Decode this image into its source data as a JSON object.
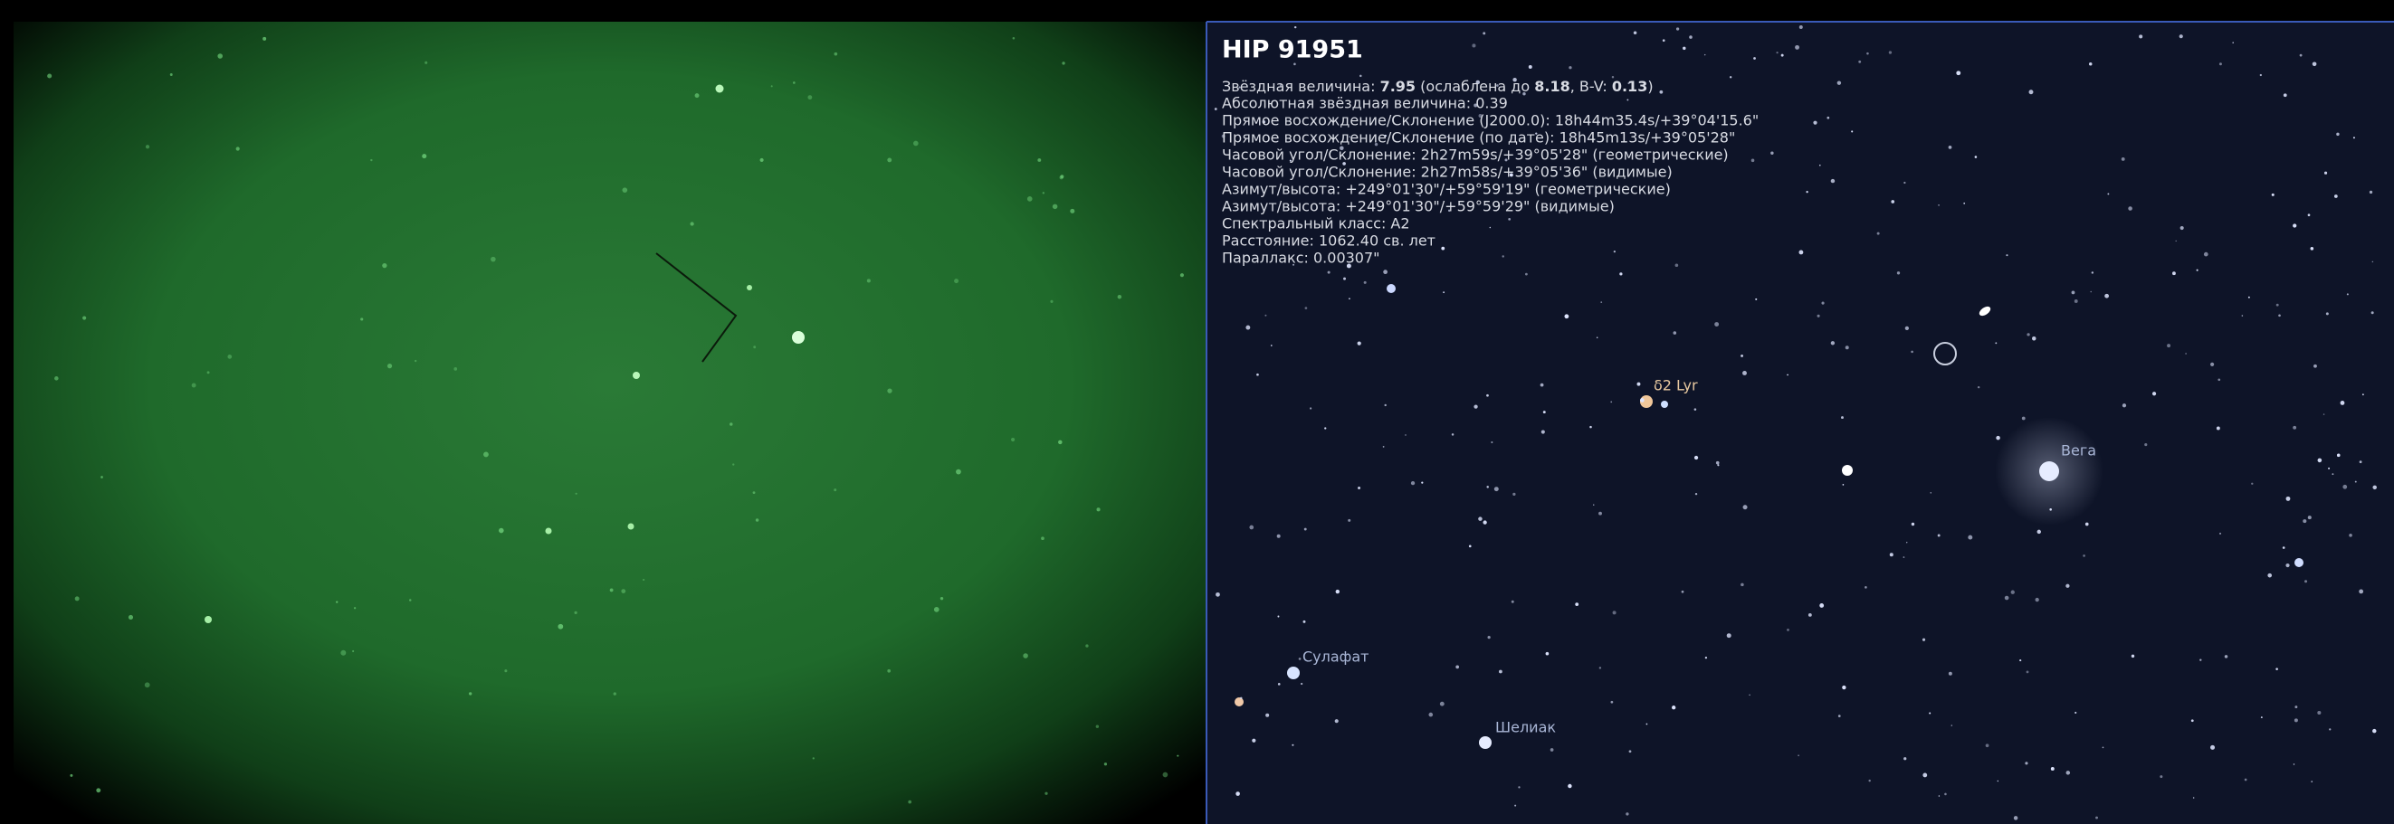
{
  "info_panel": {
    "title": "HIP 91951",
    "magnitude": {
      "label": "Звёздная величина:",
      "value": "7.95",
      "extinction_label": "(ослаблена до",
      "extinction_value": "8.18",
      "bv_label": ", B-V:",
      "bv_value": "0.13",
      "close": ")"
    },
    "lines": [
      "Абсолютная звёздная величина: 0.39",
      "Прямое восхождение/Склонение (J2000.0): 18h44m35.4s/+39°04'15.6\"",
      "Прямое восхождение/Склонение (по дате): 18h45m13s/+39°05'28\"",
      "Часовой угол/Склонение: 2h27m59s/+39°05'28\" (геометрические)",
      "Часовой угол/Склонение: 2h27m58s/+39°05'36\" (видимые)",
      "Азимут/высота: +249°01'30\"/+59°59'19\" (геометрические)",
      "Азимут/высота: +249°01'30\"/+59°59'29\" (видимые)",
      "Спектральный класс: A2",
      "Расстояние: 1062.40 св. лет",
      "Параллакс: 0.00307\""
    ]
  },
  "star_labels": [
    "δ2 Lyr",
    "Вега",
    "Сулафат",
    "Шелиак"
  ]
}
